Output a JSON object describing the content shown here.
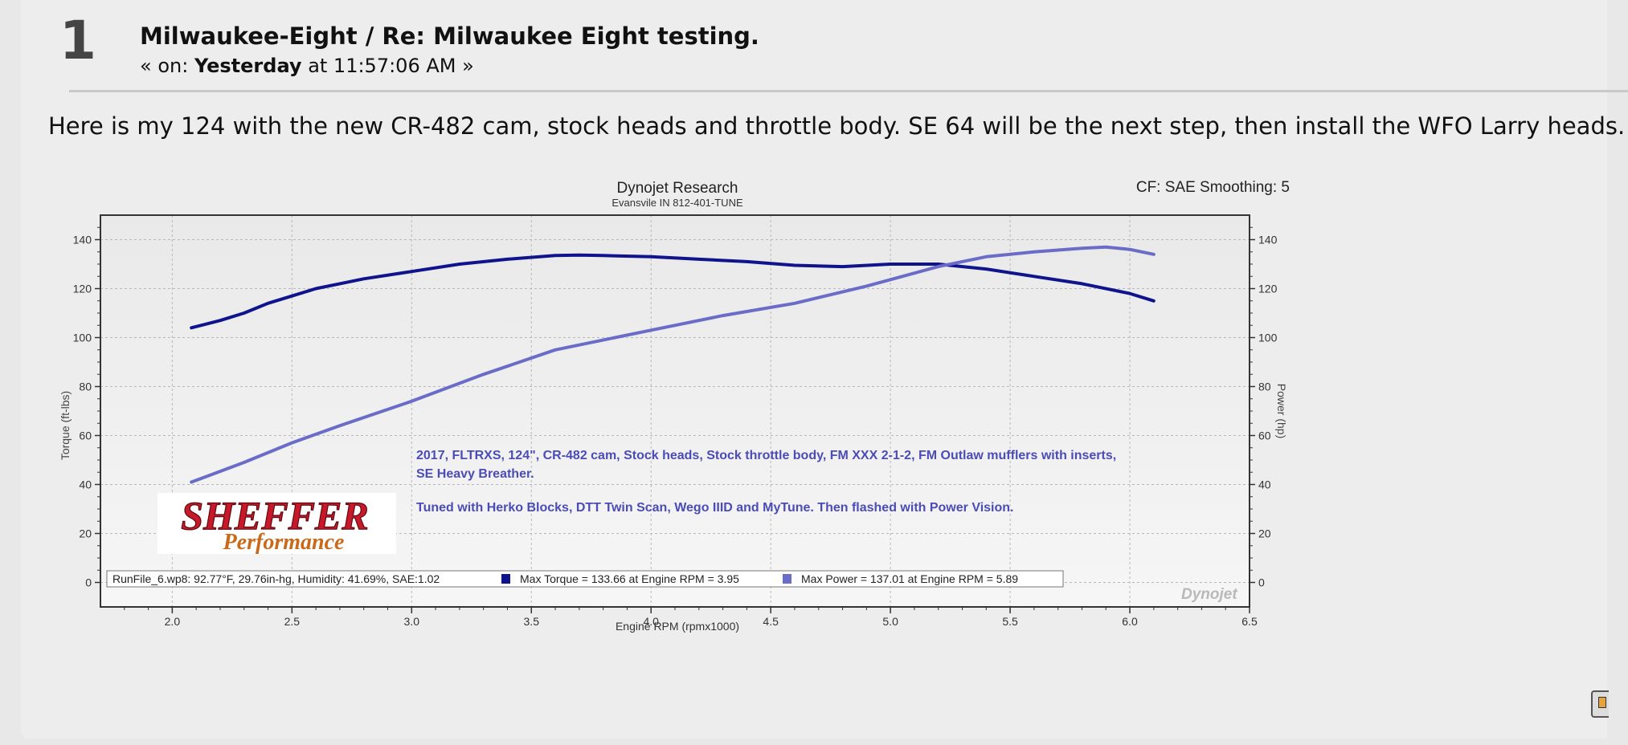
{
  "post": {
    "number": "1",
    "title": "Milwaukee-Eight / Re: Milwaukee Eight testing.",
    "meta_prefix": "« on:",
    "meta_day": "Yesterday",
    "meta_time": "at 11:57:06 AM »",
    "body": "Here is my 124 with the new CR-482 cam, stock heads and throttle body. SE 64 will be the next step, then install the WFO Larry heads."
  },
  "chart_data": {
    "type": "line",
    "title": "Dynojet Research",
    "subtitle": "Evansvile IN 812-401-TUNE",
    "corner_text": "CF: SAE Smoothing: 5",
    "xlabel": "Engine RPM (rpmx1000)",
    "ylabel_left": "Torque (ft-lbs)",
    "ylabel_right": "Power (hp)",
    "xlim": [
      1.7,
      6.5
    ],
    "ylim": [
      -10,
      150
    ],
    "x_ticks": [
      "2.0",
      "2.5",
      "3.0",
      "3.5",
      "4.0",
      "4.5",
      "5.0",
      "5.5",
      "6.0",
      "6.5"
    ],
    "y_ticks": [
      "0",
      "20",
      "40",
      "60",
      "80",
      "100",
      "120",
      "140"
    ],
    "grid": true,
    "series": [
      {
        "color": "#0f148c",
        "x": [
          2.08,
          2.2,
          2.3,
          2.4,
          2.5,
          2.6,
          2.7,
          2.8,
          3.0,
          3.2,
          3.4,
          3.6,
          3.7,
          3.8,
          4.0,
          4.2,
          4.4,
          4.6,
          4.8,
          5.0,
          5.2,
          5.4,
          5.6,
          5.8,
          6.0,
          6.1
        ],
        "values": [
          104,
          107,
          110,
          114,
          117,
          120,
          122,
          124,
          127,
          130,
          132,
          133.5,
          133.7,
          133.5,
          133,
          132,
          131,
          129.5,
          129,
          130,
          130,
          128,
          125,
          122,
          118,
          115
        ]
      },
      {
        "color": "#6a6cc8",
        "x": [
          2.08,
          2.3,
          2.5,
          2.7,
          3.0,
          3.3,
          3.6,
          4.0,
          4.3,
          4.6,
          4.9,
          5.2,
          5.4,
          5.6,
          5.8,
          5.9,
          6.0,
          6.1
        ],
        "values": [
          41,
          49,
          57,
          64,
          74,
          85,
          95,
          103,
          109,
          114,
          121,
          129,
          133,
          135,
          136.5,
          137,
          136,
          134
        ]
      }
    ],
    "annotations": [
      "2017, FLTRXS, 124\", CR-482 cam, Stock heads, Stock throttle body, FM XXX 2-1-2, FM Outlaw mufflers with inserts,",
      "SE Heavy Breather.",
      "Tuned with Herko Blocks, DTT Twin Scan, Wego IIID and MyTune. Then flashed with Power Vision."
    ],
    "legend_runfile": "RunFile_6.wp8: 92.77°F, 29.76in-hg, Humidity: 41.69%, SAE:1.02",
    "legend_torque": "Max Torque = 133.66 at Engine RPM = 3.95",
    "legend_power": "Max Power = 137.01 at Engine RPM = 5.89",
    "logo_top": "SHEFFER",
    "logo_bottom": "Performance",
    "watermark": "Dynojet"
  }
}
